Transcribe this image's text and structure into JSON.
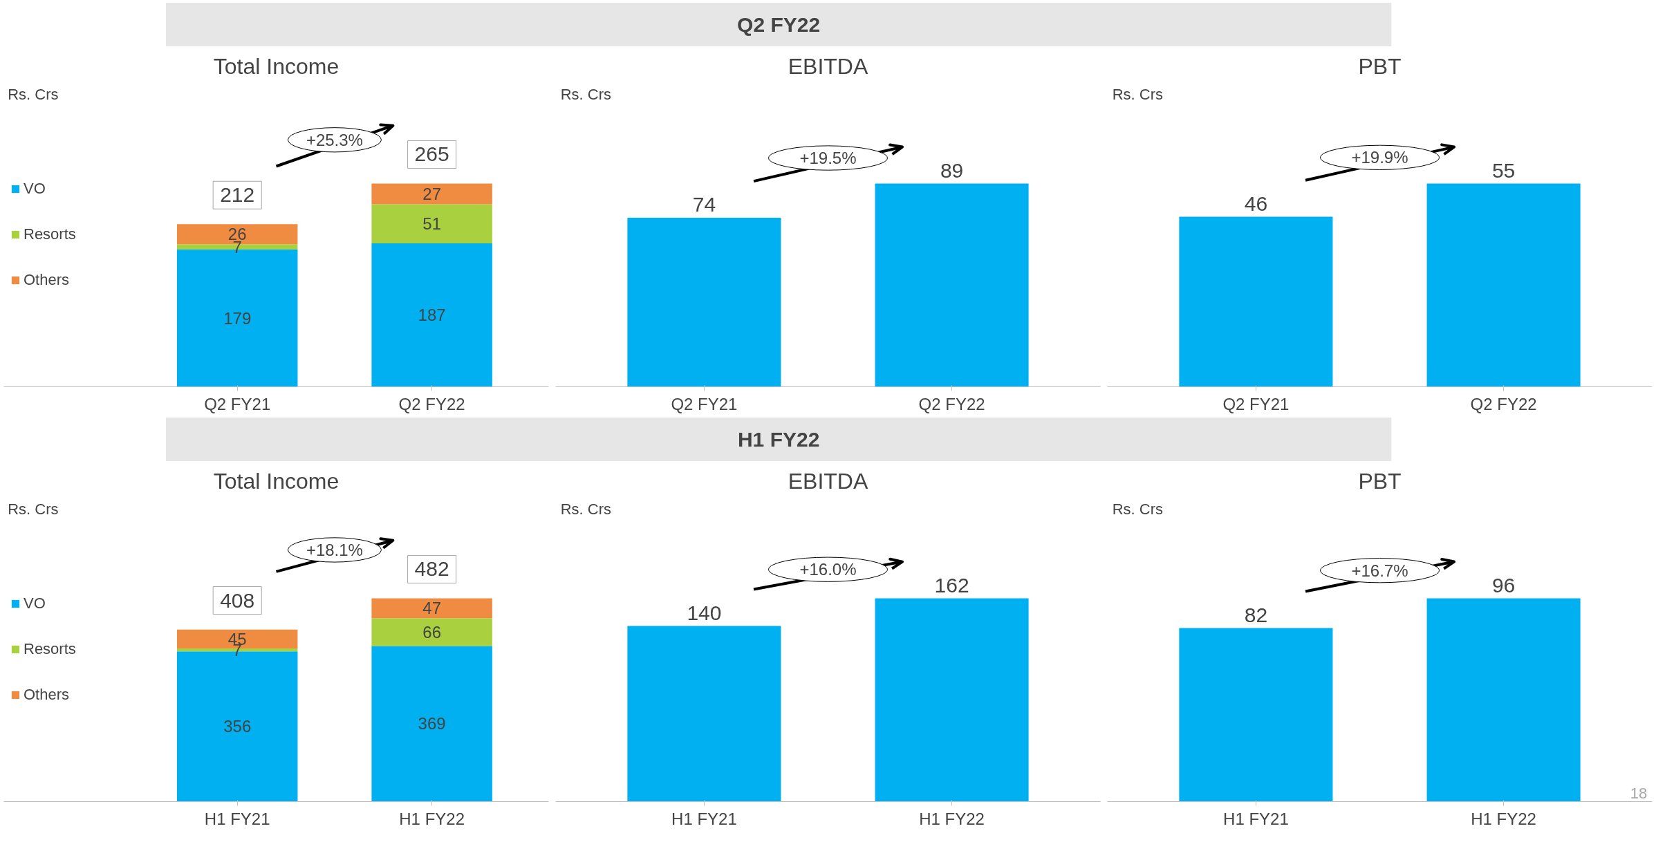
{
  "chart_data": [
    {
      "type": "other",
      "title": "Q2 FY22"
    },
    {
      "type": "bar",
      "title": "Total Income",
      "ylabel": "Rs. Crs",
      "categories": [
        "Q2 FY21",
        "Q2 FY22"
      ],
      "stacked": true,
      "legend": "left",
      "data_labels": true,
      "totals": [
        "212",
        "265"
      ],
      "annotations": [
        "+25.3%"
      ],
      "series": [
        {
          "name": "VO",
          "color": "#00b0f0",
          "values": [
            179,
            187
          ]
        },
        {
          "name": "Resorts",
          "color": "#a9d13f",
          "values": [
            7,
            51
          ]
        },
        {
          "name": "Others",
          "color": "#f08c42",
          "values": [
            26,
            27
          ]
        }
      ]
    },
    {
      "type": "bar",
      "title": "EBITDA",
      "ylabel": "Rs. Crs",
      "categories": [
        "Q2 FY21",
        "Q2 FY22"
      ],
      "data_labels": true,
      "annotations": [
        "+19.5%"
      ],
      "series": [
        {
          "color": "#00b0f0",
          "values": [
            74,
            89
          ]
        }
      ]
    },
    {
      "type": "bar",
      "title": "PBT",
      "ylabel": "Rs. Crs",
      "categories": [
        "Q2 FY21",
        "Q2 FY22"
      ],
      "data_labels": true,
      "annotations": [
        "+19.9%"
      ],
      "series": [
        {
          "color": "#00b0f0",
          "values": [
            46,
            55
          ]
        }
      ]
    },
    {
      "type": "other",
      "title": "H1 FY22"
    },
    {
      "type": "bar",
      "title": "Total Income",
      "ylabel": "Rs. Crs",
      "categories": [
        "H1 FY21",
        "H1 FY22"
      ],
      "stacked": true,
      "legend": "left",
      "data_labels": true,
      "totals": [
        "408",
        "482"
      ],
      "annotations": [
        "+18.1%"
      ],
      "series": [
        {
          "name": "VO",
          "color": "#00b0f0",
          "values": [
            356,
            369
          ]
        },
        {
          "name": "Resorts",
          "color": "#a9d13f",
          "values": [
            7,
            66
          ]
        },
        {
          "name": "Others",
          "color": "#f08c42",
          "values": [
            45,
            47
          ]
        }
      ]
    },
    {
      "type": "bar",
      "title": "EBITDA",
      "ylabel": "Rs. Crs",
      "categories": [
        "H1 FY21",
        "H1 FY22"
      ],
      "data_labels": true,
      "annotations": [
        "+16.0%"
      ],
      "series": [
        {
          "color": "#00b0f0",
          "values": [
            140,
            162
          ]
        }
      ]
    },
    {
      "type": "bar",
      "title": "PBT",
      "ylabel": "Rs. Crs",
      "categories": [
        "H1 FY21",
        "H1 FY22"
      ],
      "data_labels": true,
      "annotations": [
        "+16.7%",
        "18"
      ],
      "series": [
        {
          "color": "#00b0f0",
          "values": [
            82,
            96
          ]
        }
      ]
    }
  ]
}
